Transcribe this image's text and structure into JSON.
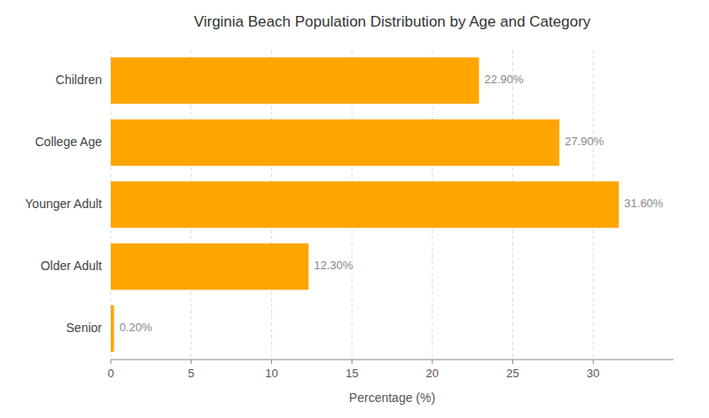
{
  "chart_data": {
    "type": "bar",
    "orientation": "horizontal",
    "title": "Virginia Beach Population Distribution by Age and Category",
    "categories": [
      "Senior",
      "Older Adult",
      "Younger Adult",
      "College Age",
      "Children"
    ],
    "values": [
      0.2,
      12.3,
      31.6,
      27.9,
      22.9
    ],
    "value_labels": [
      "0.20%",
      "12.30%",
      "31.60%",
      "27.90%",
      "22.90%"
    ],
    "data_labels": true,
    "color": "#FFA500",
    "xlabel": "Percentage (%)",
    "xlim": [
      0,
      35
    ],
    "xticks": [
      0,
      5,
      10,
      15,
      20,
      25,
      30
    ],
    "grid": true
  }
}
